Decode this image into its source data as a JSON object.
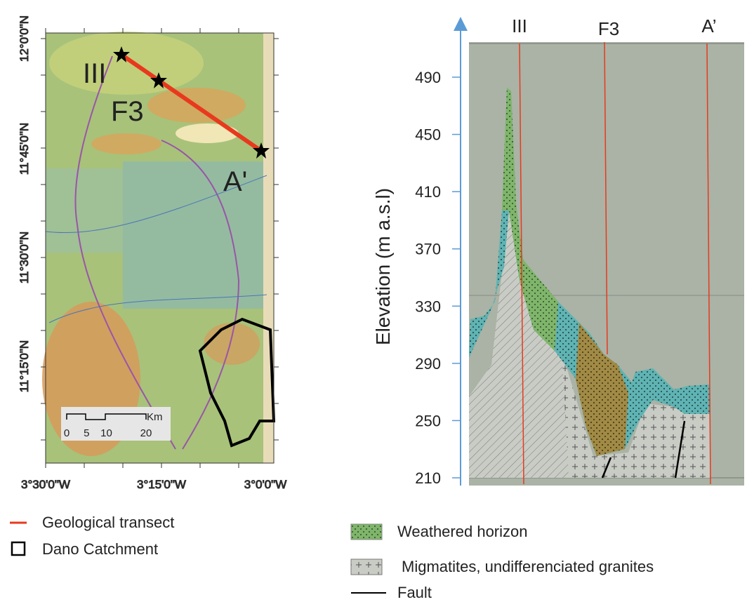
{
  "map": {
    "latitude_labels": [
      "12°0'0\"N",
      "11°45'0\"N",
      "11°30'0\"N",
      "11°15'0\"N"
    ],
    "longitude_labels": [
      "3°30'0\"W",
      "3°15'0\"W",
      "3°0'0\"W"
    ],
    "points": [
      {
        "label": "III"
      },
      {
        "label": "F3"
      },
      {
        "label": "A'"
      }
    ],
    "scale_bar": {
      "ticks": [
        0,
        5,
        10,
        20
      ],
      "unit": "Km"
    }
  },
  "map_legend": [
    "Geological transect",
    "Dano Catchment"
  ],
  "cross_section": {
    "y_axis_label": "Elevation (m a.s.l)",
    "yticks": [
      490,
      450,
      410,
      370,
      330,
      290,
      250,
      210
    ],
    "columns": [
      "III",
      "F3",
      "A’"
    ]
  },
  "section_legend": [
    "Weathered horizon",
    "Migmatites, undifferenciated granites",
    "Fault"
  ]
}
